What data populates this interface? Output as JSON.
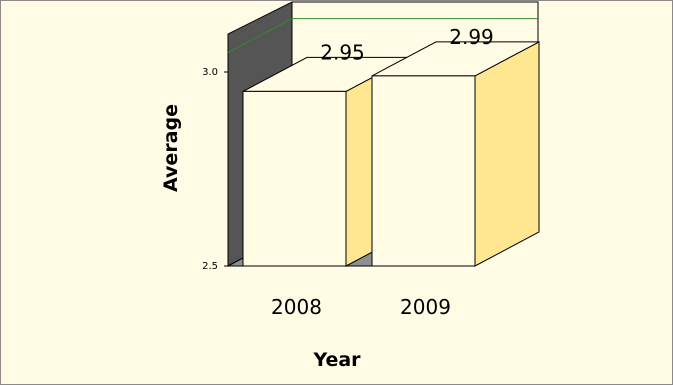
{
  "chart_data": {
    "type": "bar",
    "title": "",
    "xlabel": "Year",
    "ylabel": "Average",
    "categories": [
      "2008",
      "2009"
    ],
    "series": [
      {
        "values": [
          2.95,
          2.99
        ]
      }
    ],
    "data_labels": [
      "2.95",
      "2.99"
    ],
    "yticks": [
      "2.5",
      "3.0"
    ],
    "ylim": [
      2.5,
      3.1
    ],
    "reference_line": 3.05,
    "three_d": true,
    "colors": {
      "background": "#fffbe5",
      "bar_front": "#fffbe5",
      "bar_side": "#ffe690",
      "bar_top": "#fffbe5",
      "back_wall": "#fffbe5",
      "left_wall": "#555555",
      "floor": "#8f8f8f",
      "reference_line": "#2e8b2e"
    }
  }
}
